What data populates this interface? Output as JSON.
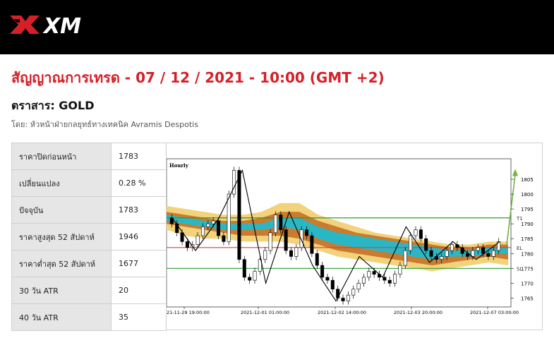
{
  "header": {
    "brand": "XM"
  },
  "title": "สัญญาณการเทรด - 07 / 12 / 2021 - 10:00 (GMT +2)",
  "instrument": "ตราสาร: GOLD",
  "author": "โดย: หัวหน้าฝ่ายกลยุทธ์ทางเทคนิค Avramis Despotis",
  "stats": [
    {
      "label": "ราคาปิดก่อนหน้า",
      "value": "1783"
    },
    {
      "label": "เปลี่ยนแปลง",
      "value": "0.28 %"
    },
    {
      "label": "ปัจจุบัน",
      "value": "1783"
    },
    {
      "label": "ราคาสูงสุด 52 สัปดาห์",
      "value": "1946"
    },
    {
      "label": "ราคาต่ำสุด 52 สัปดาห์",
      "value": "1677"
    },
    {
      "label": "30 วัน ATR",
      "value": "20"
    },
    {
      "label": "40 วัน ATR",
      "value": "35"
    }
  ],
  "chart_data": {
    "type": "candlestick",
    "timeframe_label": "Hourly",
    "x_tick_labels": [
      "21-11-29 19:00:00",
      "2021-12-01 01:00:00",
      "2021-12-02 14:00:00",
      "2021-12-03 20:00:00",
      "2021-12-07 03:00:00"
    ],
    "y_ticks": [
      1765,
      1770,
      1775,
      1780,
      1785,
      1790,
      1795,
      1800,
      1805
    ],
    "ylim": [
      1762,
      1810
    ],
    "levels": [
      {
        "name": "T1",
        "value": 1792,
        "color": "#2e9e35"
      },
      {
        "name": "EL",
        "value": 1782,
        "color": "#d94040"
      },
      {
        "name": "SL",
        "value": 1775,
        "color": "#2e9e35"
      }
    ],
    "close_path": [
      1792,
      1790,
      1787,
      1784,
      1782,
      1783,
      1786,
      1789,
      1790,
      1791,
      1786,
      1784,
      1800,
      1808,
      1778,
      1772,
      1771,
      1774,
      1778,
      1781,
      1787,
      1793,
      1788,
      1781,
      1779,
      1782,
      1788,
      1786,
      1780,
      1776,
      1772,
      1771,
      1768,
      1765,
      1764,
      1766,
      1768,
      1770,
      1772,
      1774,
      1773,
      1772,
      1771,
      1770,
      1773,
      1776,
      1781,
      1786,
      1788,
      1785,
      1781,
      1779,
      1778,
      1779,
      1781,
      1783,
      1782,
      1780,
      1779,
      1781,
      1782,
      1780,
      1779,
      1781,
      1784
    ],
    "zigzag": [
      1792,
      1781,
      1792,
      1808,
      1770,
      1794,
      1776,
      1764,
      1779,
      1772,
      1789,
      1777,
      1784,
      1778,
      1784
    ],
    "bands": [
      {
        "name": "outer",
        "color": "#f2d27a",
        "upper": [
          1796,
          1795,
          1794,
          1793,
          1793,
          1794,
          1797,
          1797,
          1793,
          1791,
          1789,
          1787,
          1786,
          1785,
          1784,
          1783,
          1783,
          1784,
          1784
        ],
        "lower": [
          1788,
          1786,
          1785,
          1785,
          1784,
          1784,
          1784,
          1783,
          1781,
          1779,
          1778,
          1777,
          1776,
          1775,
          1774,
          1775,
          1776,
          1777,
          1776
        ]
      },
      {
        "name": "mid",
        "color": "#c97b30",
        "upper": [
          1794,
          1793,
          1792,
          1791,
          1791,
          1792,
          1794,
          1794,
          1791,
          1789,
          1787,
          1786,
          1785,
          1784,
          1783,
          1782,
          1782,
          1783,
          1783
        ],
        "lower": [
          1790,
          1789,
          1788,
          1787,
          1786,
          1786,
          1786,
          1785,
          1783,
          1781,
          1780,
          1779,
          1778,
          1777,
          1776,
          1777,
          1778,
          1779,
          1778
        ]
      },
      {
        "name": "inner",
        "color": "#2ab7c5",
        "upper": [
          1793,
          1792,
          1791,
          1790,
          1790,
          1790,
          1792,
          1792,
          1789,
          1787,
          1786,
          1785,
          1784,
          1783,
          1782,
          1781,
          1781,
          1782,
          1782
        ],
        "lower": [
          1791,
          1790,
          1789,
          1788,
          1788,
          1788,
          1789,
          1788,
          1785,
          1783,
          1782,
          1781,
          1780,
          1779,
          1778,
          1779,
          1779,
          1780,
          1780
        ]
      }
    ],
    "forecast_arrow": {
      "from": 1783,
      "to": 1808,
      "color": "#6fb43f"
    }
  },
  "colors": {
    "accent": "#d62028",
    "topbar": "#000000"
  }
}
